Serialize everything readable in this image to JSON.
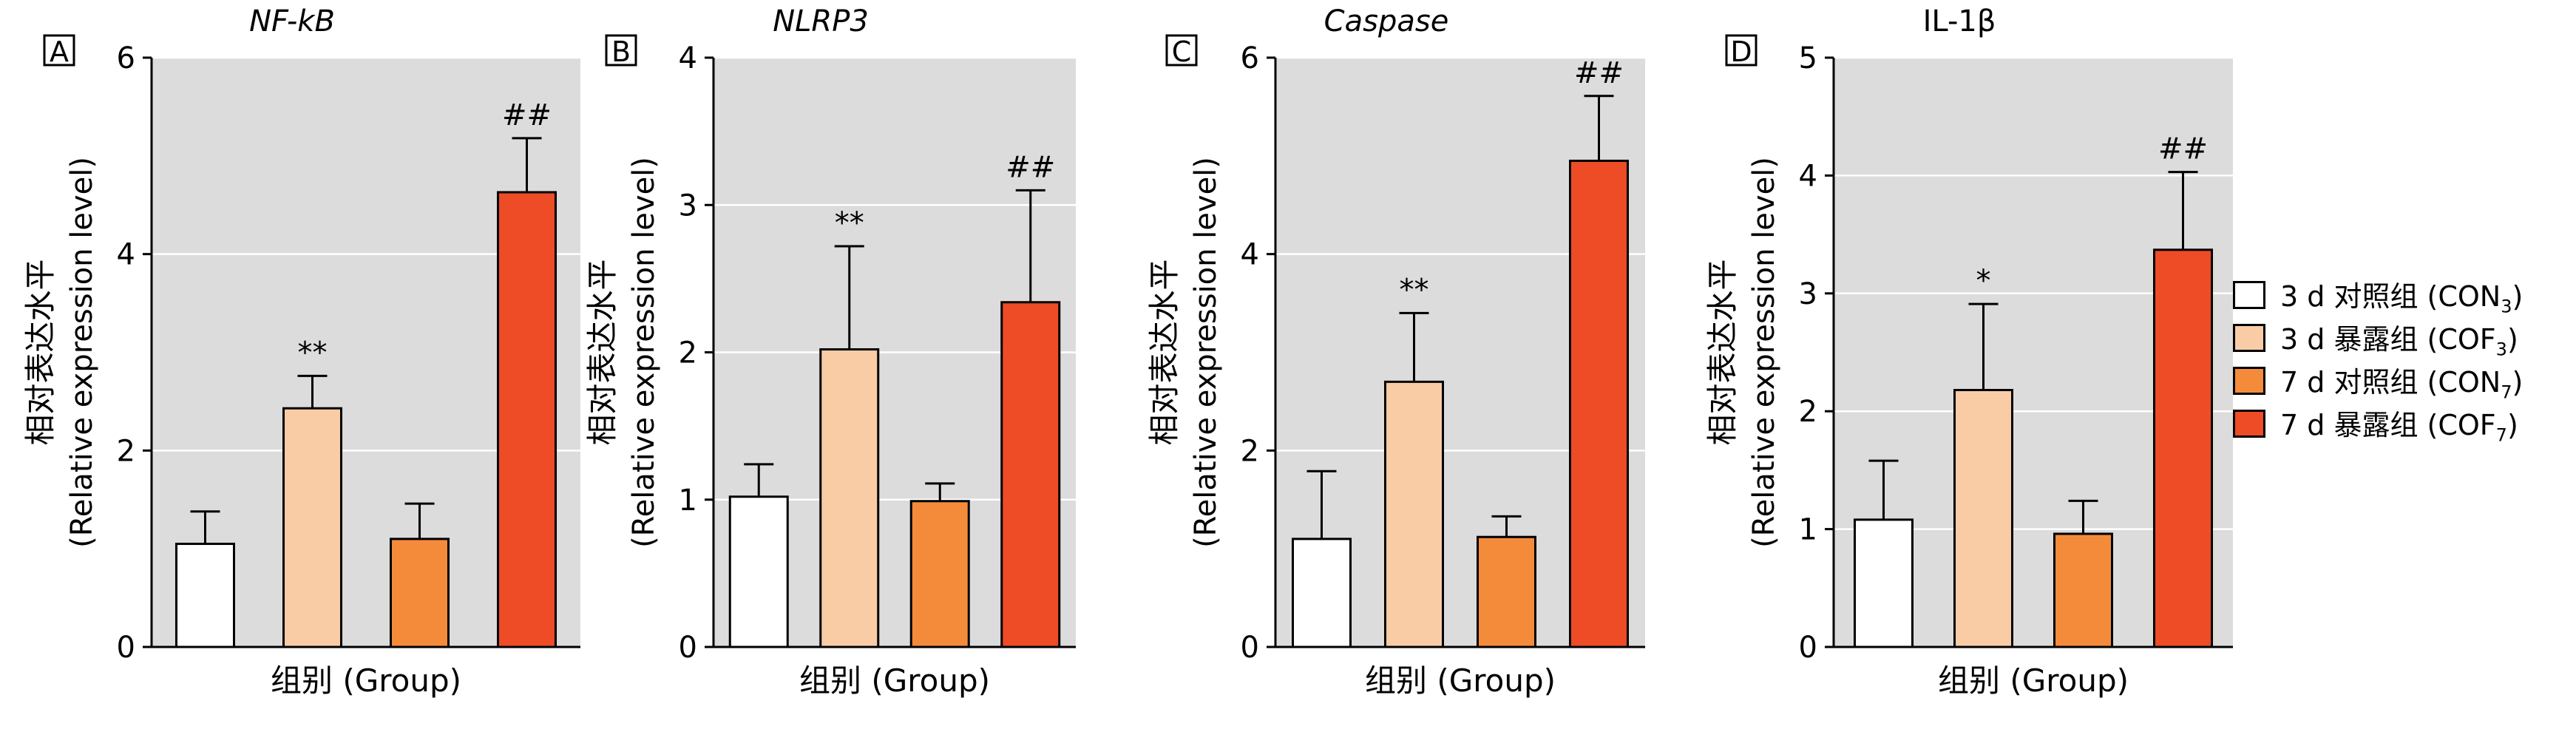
{
  "chart_data": [
    {
      "type": "bar",
      "panel": "A",
      "title": "NF-kB",
      "title_italic": true,
      "xlabel": "组别 (Group)",
      "ylabel_line1": "相对表达水平",
      "ylabel_line2": "(Relative expression level)",
      "ylim": [
        0,
        6
      ],
      "yticks": [
        "0",
        "2",
        "4",
        "6"
      ],
      "categories": [
        "CON3",
        "COF3",
        "CON7",
        "COF7"
      ],
      "values": [
        1.05,
        2.43,
        1.1,
        4.63
      ],
      "errors": [
        0.33,
        0.33,
        0.36,
        0.55
      ],
      "annotations": [
        "",
        "**",
        "",
        "##"
      ]
    },
    {
      "type": "bar",
      "panel": "B",
      "title": "NLRP3",
      "title_italic": true,
      "xlabel": "组别 (Group)",
      "ylabel_line1": "相对表达水平",
      "ylabel_line2": "(Relative expression level)",
      "ylim": [
        0,
        4
      ],
      "yticks": [
        "0",
        "1",
        "2",
        "3",
        "4"
      ],
      "categories": [
        "CON3",
        "COF3",
        "CON7",
        "COF7"
      ],
      "values": [
        1.02,
        2.02,
        0.99,
        2.34
      ],
      "errors": [
        0.22,
        0.7,
        0.12,
        0.76
      ],
      "annotations": [
        "",
        "**",
        "",
        "##"
      ]
    },
    {
      "type": "bar",
      "panel": "C",
      "title": "Caspase",
      "title_italic": true,
      "xlabel": "组别 (Group)",
      "ylabel_line1": "相对表达水平",
      "ylabel_line2": "(Relative expression level)",
      "ylim": [
        0,
        6
      ],
      "yticks": [
        "0",
        "2",
        "4",
        "6"
      ],
      "categories": [
        "CON3",
        "COF3",
        "CON7",
        "COF7"
      ],
      "values": [
        1.1,
        2.7,
        1.12,
        4.95
      ],
      "errors": [
        0.69,
        0.7,
        0.21,
        0.66
      ],
      "annotations": [
        "",
        "**",
        "",
        "##"
      ]
    },
    {
      "type": "bar",
      "panel": "D",
      "title": "IL-1β",
      "title_italic": false,
      "xlabel": "组别 (Group)",
      "ylabel_line1": "相对表达水平",
      "ylabel_line2": "(Relative expression level)",
      "ylim": [
        0,
        5
      ],
      "yticks": [
        "0",
        "1",
        "2",
        "3",
        "4",
        "5"
      ],
      "categories": [
        "CON3",
        "COF3",
        "CON7",
        "COF7"
      ],
      "values": [
        1.08,
        2.18,
        0.96,
        3.37
      ],
      "errors": [
        0.5,
        0.73,
        0.28,
        0.66
      ],
      "annotations": [
        "",
        "*",
        "",
        "##"
      ]
    }
  ],
  "legend": [
    {
      "label": "3 d 对照组 (CON",
      "sub": "3",
      "suffix": ")",
      "color": "#ffffff"
    },
    {
      "label": "3 d 暴露组 (COF",
      "sub": "3",
      "suffix": ")",
      "color": "#f9cca6"
    },
    {
      "label": "7 d 对照组 (CON",
      "sub": "7",
      "suffix": ")",
      "color": "#f48b3b"
    },
    {
      "label": "7 d 暴露组 (COF",
      "sub": "7",
      "suffix": ")",
      "color": "#ee4b27"
    }
  ],
  "grid": true,
  "plot_background": "#dcdcdc"
}
